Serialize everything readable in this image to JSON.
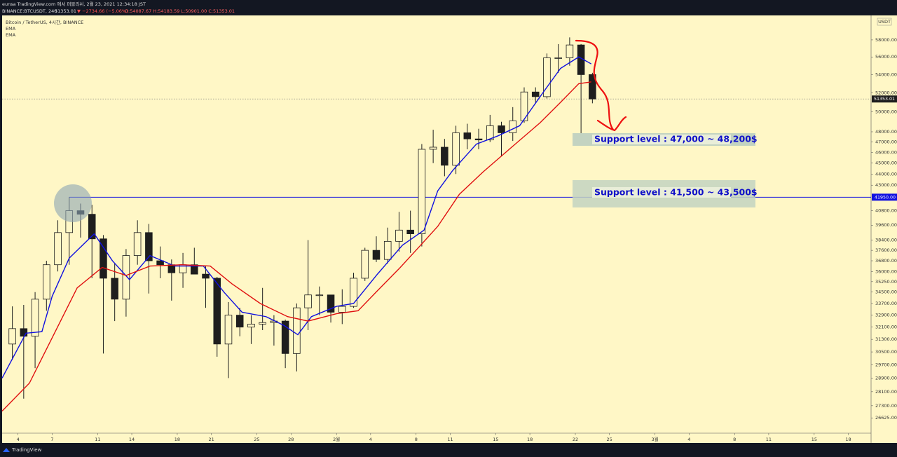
{
  "header": {
    "publisher": "eunsa TradingView.com 에서 퍼블리쉬, 2월 23, 2021 12:34:18 JST",
    "symbol": "BINANCE:BTCUSDT, 240",
    "last": "51353.01",
    "change": "▼ −2734.66 (−5.06%)",
    "ohlc": "O:54087.67 H:54183.59 L:50901.00 C:51353.01"
  },
  "footer": {
    "brand": "TradingView"
  },
  "chart_data": {
    "type": "candlestick",
    "title": "Bitcoin / TetherUS, 4시간, BINANCE",
    "currency": "USDT",
    "log_scale": true,
    "xlim": [
      2.6,
      79
    ],
    "ylim": [
      25800,
      61000
    ],
    "xticks": [
      4,
      7,
      11,
      14,
      18,
      21,
      25,
      28,
      {
        "value": 32,
        "label": "2월"
      },
      {
        "value": 35,
        "label": "4"
      },
      {
        "value": 39,
        "label": "8"
      },
      {
        "value": 42,
        "label": "11"
      },
      {
        "value": 46,
        "label": "15"
      },
      {
        "value": 49,
        "label": "18"
      },
      {
        "value": 53,
        "label": "22"
      },
      {
        "value": 56,
        "label": "25"
      },
      {
        "value": 60,
        "label": "3월"
      },
      {
        "value": 63,
        "label": "4"
      },
      {
        "value": 67,
        "label": "8"
      },
      {
        "value": 70,
        "label": "11"
      },
      {
        "value": 74,
        "label": "15"
      },
      {
        "value": 77,
        "label": "18"
      }
    ],
    "yticks": [
      {
        "value": 58000,
        "label": "58000.00"
      },
      {
        "value": 56000,
        "label": "56000.00"
      },
      {
        "value": 54000,
        "label": "54000.00"
      },
      {
        "value": 52000,
        "label": "52000.00"
      },
      {
        "value": 50000,
        "label": "50000.00"
      },
      {
        "value": 48000,
        "label": "48000.00"
      },
      {
        "value": 47000,
        "label": "47000.00"
      },
      {
        "value": 46000,
        "label": "46000.00"
      },
      {
        "value": 45000,
        "label": "45000.00"
      },
      {
        "value": 44000,
        "label": "44000.00"
      },
      {
        "value": 43000,
        "label": "43000.00"
      },
      {
        "value": 40800,
        "label": "40800.00"
      },
      {
        "value": 39600,
        "label": "39600.00"
      },
      {
        "value": 38400,
        "label": "38400.00"
      },
      {
        "value": 37600,
        "label": "37600.00"
      },
      {
        "value": 36800,
        "label": "36800.00"
      },
      {
        "value": 36000,
        "label": "36000.00"
      },
      {
        "value": 35250,
        "label": "35250.00"
      },
      {
        "value": 34500,
        "label": "34500.00"
      },
      {
        "value": 33700,
        "label": "33700.00"
      },
      {
        "value": 32900,
        "label": "32900.00"
      },
      {
        "value": 32100,
        "label": "32100.00"
      },
      {
        "value": 31300,
        "label": "31300.00"
      },
      {
        "value": 30500,
        "label": "30500.00"
      },
      {
        "value": 29700,
        "label": "29700.00"
      },
      {
        "value": 28900,
        "label": "28900.00"
      },
      {
        "value": 28100,
        "label": "28100.00"
      },
      {
        "value": 27300,
        "label": "27300.00"
      },
      {
        "value": 26625,
        "label": "26625.00"
      }
    ],
    "color": "#1e1e1e",
    "x": [
      3,
      4,
      5,
      6,
      7,
      8,
      9,
      10,
      11,
      12,
      13,
      14,
      15,
      16,
      17,
      18,
      19,
      20,
      21,
      22,
      23,
      24,
      25,
      26,
      27,
      28,
      29,
      30,
      31,
      32,
      33,
      34,
      35,
      36,
      37,
      38,
      39,
      40,
      41,
      42,
      43,
      44,
      45,
      46,
      47,
      48,
      49,
      50,
      51,
      52,
      53,
      54
    ],
    "open": [
      31000,
      32000,
      31500,
      34000,
      36500,
      39000,
      40800,
      40500,
      38500,
      35500,
      34000,
      37200,
      39000,
      36800,
      36500,
      35900,
      36500,
      35800,
      35500,
      31000,
      32900,
      32100,
      32300,
      32400,
      32500,
      30400,
      33400,
      34300,
      34300,
      33100,
      33500,
      35500,
      37600,
      36900,
      38300,
      39200,
      38900,
      46300,
      46500,
      44800,
      47900,
      47300,
      47200,
      48600,
      47900,
      49100,
      52100,
      51600,
      55900,
      55900,
      57400,
      54000
    ],
    "high": [
      33500,
      33600,
      34500,
      36800,
      40000,
      41950,
      41400,
      41300,
      38800,
      36600,
      37700,
      40000,
      39700,
      37900,
      36900,
      37400,
      37800,
      36400,
      35600,
      33800,
      33400,
      32900,
      34800,
      32900,
      32600,
      33700,
      38400,
      34900,
      34300,
      34700,
      35900,
      37800,
      38700,
      39400,
      40700,
      40800,
      46800,
      48200,
      47300,
      48600,
      48800,
      48300,
      49700,
      49000,
      50500,
      52600,
      52600,
      56400,
      57500,
      58300,
      57500,
      54200
    ],
    "low": [
      30000,
      27700,
      29500,
      33200,
      36000,
      36500,
      38600,
      35500,
      30400,
      32500,
      32800,
      36500,
      34400,
      35500,
      33900,
      34800,
      35900,
      33400,
      30200,
      28900,
      31500,
      31000,
      31900,
      30900,
      29500,
      29300,
      31900,
      32900,
      32400,
      32300,
      33400,
      35300,
      36700,
      36600,
      37500,
      37400,
      37900,
      45000,
      43800,
      44000,
      46300,
      46300,
      47000,
      45700,
      47100,
      48900,
      50900,
      51400,
      54200,
      55000,
      47600,
      50900
    ],
    "close": [
      32000,
      31500,
      34000,
      36500,
      39000,
      40800,
      40500,
      38500,
      35500,
      34000,
      37200,
      39000,
      36800,
      36500,
      35900,
      36500,
      35800,
      35500,
      31000,
      32900,
      32100,
      32300,
      32400,
      32500,
      30400,
      33400,
      34300,
      34300,
      33100,
      33500,
      35500,
      37600,
      36900,
      38300,
      39200,
      38900,
      46300,
      46500,
      44800,
      47900,
      47300,
      47200,
      48600,
      47900,
      49100,
      52100,
      51600,
      55900,
      55900,
      57400,
      54000,
      51353.01
    ],
    "series": [
      {
        "name": "EMA",
        "color": "#1010e0",
        "x": [
          2.6,
          4.7,
          6.1,
          7,
          8.5,
          10.7,
          12.3,
          13.8,
          15.6,
          17.8,
          20.3,
          22.1,
          23.7,
          25.8,
          27.4,
          28.6,
          29.8,
          32,
          33.5,
          35.6,
          37.8,
          39.7,
          40.9,
          42.2,
          44.3,
          46.2,
          48.1,
          49.9,
          51.7,
          53.3,
          54.4
        ],
        "values": [
          28900,
          31700,
          31800,
          34200,
          37000,
          38900,
          36800,
          35400,
          37200,
          36400,
          36400,
          34500,
          33100,
          32800,
          32200,
          31600,
          32800,
          33500,
          33700,
          35800,
          38000,
          39200,
          42500,
          44300,
          46800,
          47600,
          48600,
          51600,
          54700,
          56000,
          55200
        ]
      },
      {
        "name": "EMA",
        "color": "#e01010",
        "x": [
          2.6,
          5,
          7,
          9.2,
          11.4,
          13.5,
          15.6,
          18.4,
          20.9,
          22.8,
          25.3,
          27.7,
          29.5,
          32,
          33.9,
          35.6,
          37.5,
          39.4,
          40.9,
          42.8,
          44.9,
          47.4,
          49.9,
          51.7,
          53.3,
          54.4
        ],
        "values": [
          27000,
          28600,
          31400,
          34800,
          36300,
          35700,
          36400,
          36500,
          36400,
          35100,
          33700,
          32800,
          32500,
          33000,
          33200,
          34600,
          36200,
          38000,
          39500,
          42200,
          44200,
          46500,
          48900,
          51000,
          53000,
          53200
        ]
      }
    ],
    "hline": {
      "value": 41950,
      "label": "41950.00",
      "color": "#1010e0"
    },
    "last_price": {
      "value": 51353.01,
      "label": "51353.01"
    },
    "annotations": [
      "Support level : 47,000 ~ 48,200$",
      "Support level : 41,500 ~ 43,500$"
    ]
  }
}
